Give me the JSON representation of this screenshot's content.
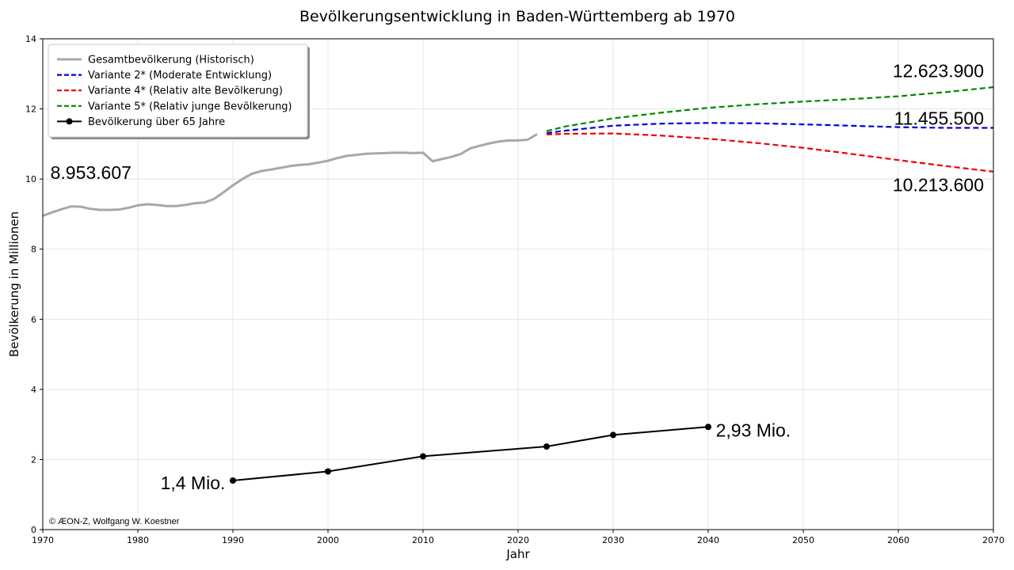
{
  "chart_data": {
    "type": "line",
    "title": "Bevölkerungsentwicklung in Baden-Württemberg ab 1970",
    "xlabel": "Jahr",
    "ylabel": "Bevölkerung in Millionen",
    "xlim": [
      1970,
      2070
    ],
    "ylim": [
      0,
      14
    ],
    "xticks": [
      1970,
      1980,
      1990,
      2000,
      2010,
      2020,
      2030,
      2040,
      2050,
      2060,
      2070
    ],
    "yticks": [
      0,
      2,
      4,
      6,
      8,
      10,
      12,
      14
    ],
    "grid": true,
    "legend_position": "top-left",
    "series": [
      {
        "name": "Gesamtbevölkerung (Historisch)",
        "color": "#a8a8a8",
        "style": "solid",
        "x": [
          1970,
          1971,
          1972,
          1973,
          1974,
          1975,
          1976,
          1977,
          1978,
          1979,
          1980,
          1981,
          1982,
          1983,
          1984,
          1985,
          1986,
          1987,
          1988,
          1989,
          1990,
          1991,
          1992,
          1993,
          1994,
          1995,
          1996,
          1997,
          1998,
          1999,
          2000,
          2001,
          2002,
          2003,
          2004,
          2005,
          2006,
          2007,
          2008,
          2009,
          2010,
          2011,
          2012,
          2013,
          2014,
          2015,
          2016,
          2017,
          2018,
          2019,
          2020,
          2021,
          2022
        ],
        "y": [
          8.95,
          9.05,
          9.14,
          9.22,
          9.21,
          9.15,
          9.12,
          9.12,
          9.13,
          9.18,
          9.25,
          9.28,
          9.26,
          9.23,
          9.23,
          9.26,
          9.31,
          9.33,
          9.43,
          9.62,
          9.82,
          10.0,
          10.15,
          10.23,
          10.27,
          10.32,
          10.37,
          10.4,
          10.42,
          10.47,
          10.52,
          10.6,
          10.66,
          10.69,
          10.72,
          10.73,
          10.74,
          10.75,
          10.75,
          10.74,
          10.75,
          10.51,
          10.57,
          10.63,
          10.72,
          10.88,
          10.95,
          11.02,
          11.07,
          11.1,
          11.1,
          11.12,
          11.28
        ]
      },
      {
        "name": "Variante 2* (Moderate Entwicklung)",
        "color": "#0000dd",
        "style": "dashed",
        "x": [
          2023,
          2025,
          2030,
          2035,
          2040,
          2045,
          2050,
          2055,
          2060,
          2065,
          2070
        ],
        "y": [
          11.31,
          11.38,
          11.52,
          11.58,
          11.6,
          11.59,
          11.56,
          11.52,
          11.48,
          11.46,
          11.46
        ]
      },
      {
        "name": "Variante 4* (Relativ alte Bevölkerung)",
        "color": "#ee0000",
        "style": "dashed",
        "x": [
          2023,
          2025,
          2030,
          2035,
          2040,
          2045,
          2050,
          2055,
          2060,
          2065,
          2070
        ],
        "y": [
          11.27,
          11.29,
          11.3,
          11.24,
          11.15,
          11.03,
          10.89,
          10.72,
          10.54,
          10.37,
          10.21
        ]
      },
      {
        "name": "Variante 5* (Relativ junge Bevölkerung)",
        "color": "#008800",
        "style": "dashed",
        "x": [
          2023,
          2025,
          2030,
          2035,
          2040,
          2045,
          2050,
          2055,
          2060,
          2065,
          2070
        ],
        "y": [
          11.37,
          11.5,
          11.73,
          11.89,
          12.03,
          12.13,
          12.21,
          12.28,
          12.36,
          12.48,
          12.62
        ]
      },
      {
        "name": "Bevölkerung über 65 Jahre",
        "color": "#000000",
        "style": "solid-marker",
        "x": [
          1990,
          2000,
          2010,
          2023,
          2030,
          2040
        ],
        "y": [
          1.4,
          1.66,
          2.09,
          2.37,
          2.7,
          2.93
        ]
      }
    ],
    "annotations": [
      {
        "text": "8.953.607",
        "x": 1970.8,
        "y": 10.0,
        "anchor": "start"
      },
      {
        "text": "12.623.900",
        "x": 2069.0,
        "y": 12.9,
        "anchor": "end"
      },
      {
        "text": "11.455.500",
        "x": 2069.0,
        "y": 11.55,
        "anchor": "end"
      },
      {
        "text": "10.213.600",
        "x": 2069.0,
        "y": 9.65,
        "anchor": "end"
      },
      {
        "text": "2,93 Mio.",
        "x": 2040.8,
        "y": 2.65,
        "anchor": "start"
      },
      {
        "text": "1,4 Mio.",
        "x": 1989.2,
        "y": 1.15,
        "anchor": "end"
      }
    ],
    "copyright": "© ÆON-Z, Wolfgang W. Koestner"
  }
}
